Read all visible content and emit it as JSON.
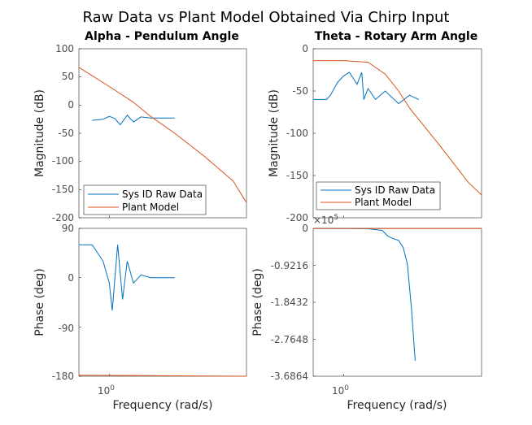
{
  "chart_data": {
    "title": "Raw Data vs Plant Model Obtained Via Chirp Input",
    "legend": [
      "Sys ID Raw Data",
      "Plant Model"
    ],
    "series_colors": [
      "#0072BD",
      "#D95319"
    ],
    "x_axis": {
      "label": "Frequency  (rad/s)",
      "scale": "log",
      "tick_label": "10",
      "tick_exp": "0"
    },
    "panels": [
      {
        "title": "Alpha - Pendulum Angle",
        "type": "line",
        "ylabel": "Magnitude (dB)",
        "ylim": [
          -200,
          100
        ],
        "yticks": [
          "100",
          "50",
          "0",
          "-50",
          "-100",
          "-150",
          "-200"
        ],
        "legend_position": "bottom-left",
        "series": [
          {
            "name": "Sys ID Raw Data",
            "x": [
              0.75,
              0.9,
              1.0,
              1.1,
              1.2,
              1.35,
              1.5,
              1.7,
              2.0,
              2.5,
              3.0
            ],
            "y": [
              -27,
              -25,
              -20,
              -24,
              -35,
              -18,
              -30,
              -21,
              -23,
              -23,
              -23
            ]
          },
          {
            "name": "Plant Model",
            "x": [
              0.6,
              1.0,
              1.5,
              2.0,
              3.0,
              5.0,
              8.0,
              10.0
            ],
            "y": [
              67,
              33,
              5,
              -20,
              -50,
              -92,
              -135,
              -173
            ]
          }
        ]
      },
      {
        "title": "Theta - Rotary Arm Angle",
        "type": "line",
        "ylabel": "Magnitude (dB)",
        "ylim": [
          -200,
          0
        ],
        "yticks": [
          "0",
          "-50",
          "-100",
          "-150",
          "-200"
        ],
        "legend_position": "bottom-right",
        "series": [
          {
            "name": "Sys ID Raw Data",
            "x": [
              0.6,
              0.75,
              0.8,
              0.9,
              1.0,
              1.1,
              1.25,
              1.35,
              1.4,
              1.5,
              1.7,
              2.0,
              2.5,
              3.0,
              3.5
            ],
            "y": [
              -60,
              -60,
              -55,
              -40,
              -32,
              -28,
              -42,
              -28,
              -60,
              -47,
              -60,
              -50,
              -65,
              -55,
              -60
            ]
          },
          {
            "name": "Plant Model",
            "x": [
              0.6,
              1.0,
              1.5,
              2.0,
              2.5,
              3.0,
              5.0,
              8.0,
              10.0
            ],
            "y": [
              -14,
              -14,
              -16,
              -30,
              -50,
              -70,
              -115,
              -158,
              -173
            ]
          }
        ]
      },
      {
        "type": "line",
        "ylabel": "Phase (deg)",
        "ylim": [
          -180,
          90
        ],
        "yticks": [
          "90",
          "0",
          "-90",
          "-180"
        ],
        "series": [
          {
            "name": "Sys ID Raw Data",
            "x": [
              0.6,
              0.75,
              0.9,
              1.0,
              1.05,
              1.15,
              1.25,
              1.35,
              1.5,
              1.7,
              2.0,
              2.5,
              3.0
            ],
            "y": [
              60,
              60,
              30,
              -10,
              -60,
              60,
              -40,
              30,
              -10,
              5,
              0,
              0,
              0
            ]
          },
          {
            "name": "Plant Model",
            "x": [
              0.6,
              10.0
            ],
            "y": [
              -178,
              -180
            ]
          }
        ]
      },
      {
        "type": "line",
        "ylabel": "Phase (deg)",
        "ylim": [
          -368640,
          0
        ],
        "yticks": [
          "0",
          "-0.9216",
          "-1.8432",
          "-2.7648",
          "-3.6864"
        ],
        "y_multiplier": "×10",
        "y_multiplier_exp": "5",
        "series": [
          {
            "name": "Sys ID Raw Data",
            "x": [
              0.6,
              1.0,
              1.5,
              1.9,
              2.1,
              2.3,
              2.5,
              2.7,
              2.9,
              3.1,
              3.3
            ],
            "y": [
              -50,
              -200,
              -1000,
              -5000,
              -20000,
              -26000,
              -30000,
              -48000,
              -90000,
              -200000,
              -330000
            ]
          },
          {
            "name": "Plant Model",
            "x": [
              0.6,
              10.0
            ],
            "y": [
              -500,
              -500
            ]
          }
        ]
      }
    ]
  }
}
